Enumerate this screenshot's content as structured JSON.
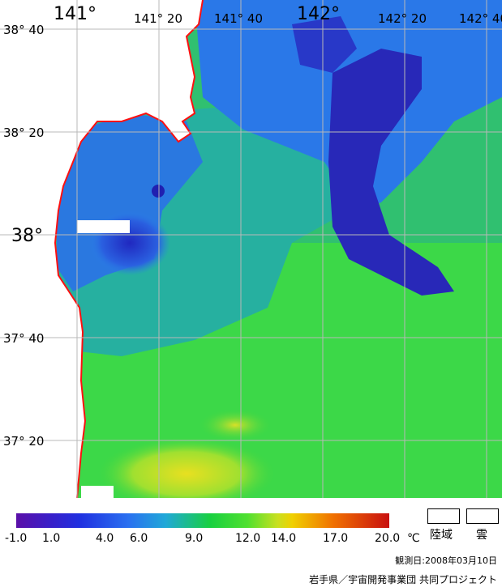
{
  "map": {
    "lon_labels_top": [
      "141°",
      "141° 20",
      "141° 40",
      "142°",
      "142° 20",
      "142° 40"
    ],
    "lat_labels": [
      "38° 40",
      "38° 20",
      "38°",
      "37° 40",
      "37° 20"
    ],
    "colors": {
      "land": "#ffffff",
      "coast": "#ff0000",
      "grid": "#b8b8b8"
    }
  },
  "colorbar": {
    "tick_labels": [
      "-1.0",
      "1.0",
      "4.0",
      "6.0",
      "9.0",
      "12.0",
      "14.0",
      "17.0",
      "20.0"
    ],
    "unit": "℃"
  },
  "legend": {
    "land_label": "陸域",
    "cloud_label": "雲"
  },
  "footer": {
    "observation_date": "観測日:2008年03月10日",
    "credit": "岩手県／宇宙開発事業団  共同プロジェクト"
  }
}
